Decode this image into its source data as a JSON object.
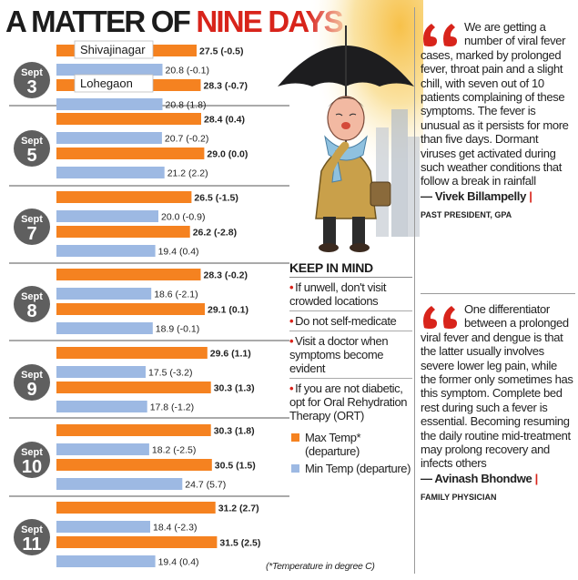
{
  "title": {
    "part1": "A MATTER OF",
    "part2": "NINE DAYS"
  },
  "colors": {
    "max": "#f58220",
    "min": "#9db9e3",
    "accent": "#d8241b",
    "badge": "#5f5f5f"
  },
  "chart_data": {
    "type": "bar",
    "orientation": "horizontal",
    "title": "A MATTER OF NINE DAYS",
    "unit": "degree C",
    "dates": [
      "Sept 3",
      "Sept 5",
      "Sept 7",
      "Sept 8",
      "Sept 9",
      "Sept 10",
      "Sept 11"
    ],
    "locations": [
      "Shivajinagar",
      "Lohegaon"
    ],
    "series": [
      {
        "name": "Shivajinagar Max Temp",
        "values": [
          27.5,
          28.4,
          26.5,
          28.3,
          29.6,
          30.3,
          31.2
        ],
        "departure": [
          -0.5,
          0.4,
          -1.5,
          -0.2,
          1.1,
          1.8,
          2.7
        ]
      },
      {
        "name": "Shivajinagar Min Temp",
        "values": [
          20.8,
          20.7,
          20.0,
          18.6,
          17.5,
          18.2,
          18.4
        ],
        "departure": [
          -0.1,
          -0.2,
          -0.9,
          -2.1,
          -3.2,
          -2.5,
          -2.3
        ]
      },
      {
        "name": "Lohegaon Max Temp",
        "values": [
          28.3,
          29.0,
          26.2,
          29.1,
          30.3,
          30.5,
          31.5
        ],
        "departure": [
          -0.7,
          0.0,
          -2.8,
          0.1,
          1.3,
          1.5,
          2.5
        ]
      },
      {
        "name": "Lohegaon Min Temp",
        "values": [
          20.8,
          21.2,
          19.4,
          18.9,
          17.8,
          24.7,
          19.4
        ],
        "departure": [
          1.8,
          2.2,
          0.4,
          -0.1,
          -1.2,
          5.7,
          0.4
        ]
      }
    ],
    "labels": {
      "shiv_max": [
        "27.5 (-0.5)",
        "28.4 (0.4)",
        "26.5 (-1.5)",
        "28.3 (-0.2)",
        "29.6 (1.1)",
        "30.3 (1.8)",
        "31.2 (2.7)"
      ],
      "shiv_min": [
        "20.8 (-0.1)",
        "20.7 (-0.2)",
        "20.0 (-0.9)",
        "18.6 (-2.1)",
        "17.5 (-3.2)",
        "18.2 (-2.5)",
        "18.4 (-2.3)"
      ],
      "loh_max": [
        "28.3 (-0.7)",
        "29.0 (0.0)",
        "26.2 (-2.8)",
        "29.1 (0.1)",
        "30.3 (1.3)",
        "30.5 (1.5)",
        "31.5 (2.5)"
      ],
      "loh_min": [
        "20.8 (1.8)",
        "21.2 (2.2)",
        "19.4 (0.4)",
        "18.9 (-0.1)",
        "17.8 (-1.2)",
        "24.7 (5.7)",
        "19.4 (0.4)"
      ]
    },
    "badges": [
      {
        "month": "Sept",
        "day": "3"
      },
      {
        "month": "Sept",
        "day": "5"
      },
      {
        "month": "Sept",
        "day": "7"
      },
      {
        "month": "Sept",
        "day": "8"
      },
      {
        "month": "Sept",
        "day": "9"
      },
      {
        "month": "Sept",
        "day": "10"
      },
      {
        "month": "Sept",
        "day": "11"
      }
    ],
    "legend": [
      "Max Temp* (departure)",
      "Min Temp (departure)"
    ]
  },
  "keep_in_mind": {
    "title": "KEEP IN MIND",
    "items": [
      "If unwell, don't visit crowded locations",
      "Do not self-medicate",
      "Visit a doctor when symptoms become evident",
      "If you are not diabetic, opt for Oral Rehydration Therapy (ORT)"
    ],
    "legend_max": "Max Temp* (departure)",
    "legend_min": "Min Temp (departure)",
    "note": "(*Temperature in degree C)"
  },
  "quotes": [
    {
      "text": "We are getting a number of viral fever cases, marked by prolonged fever, throat pain and a slight chill, with seven out of 10 patients complaining of these symptoms. The fever is unusual as it persists for more than five days. Dormant viruses get activated during such weather conditions that follow a break in rainfall",
      "author": "— Vivek Billampelly",
      "role": "PAST PRESIDENT, GPA"
    },
    {
      "text": "One differentiator between a prolonged viral fever and dengue is that the latter usually involves severe lower leg pain, while the former only sometimes has this symptom. Complete bed rest during such a fever is essential. Becoming resuming the daily routine mid-treatment may prolong recovery and infects others",
      "author": "— Avinash Bhondwe",
      "role": "FAMILY PHYSICIAN"
    }
  ]
}
